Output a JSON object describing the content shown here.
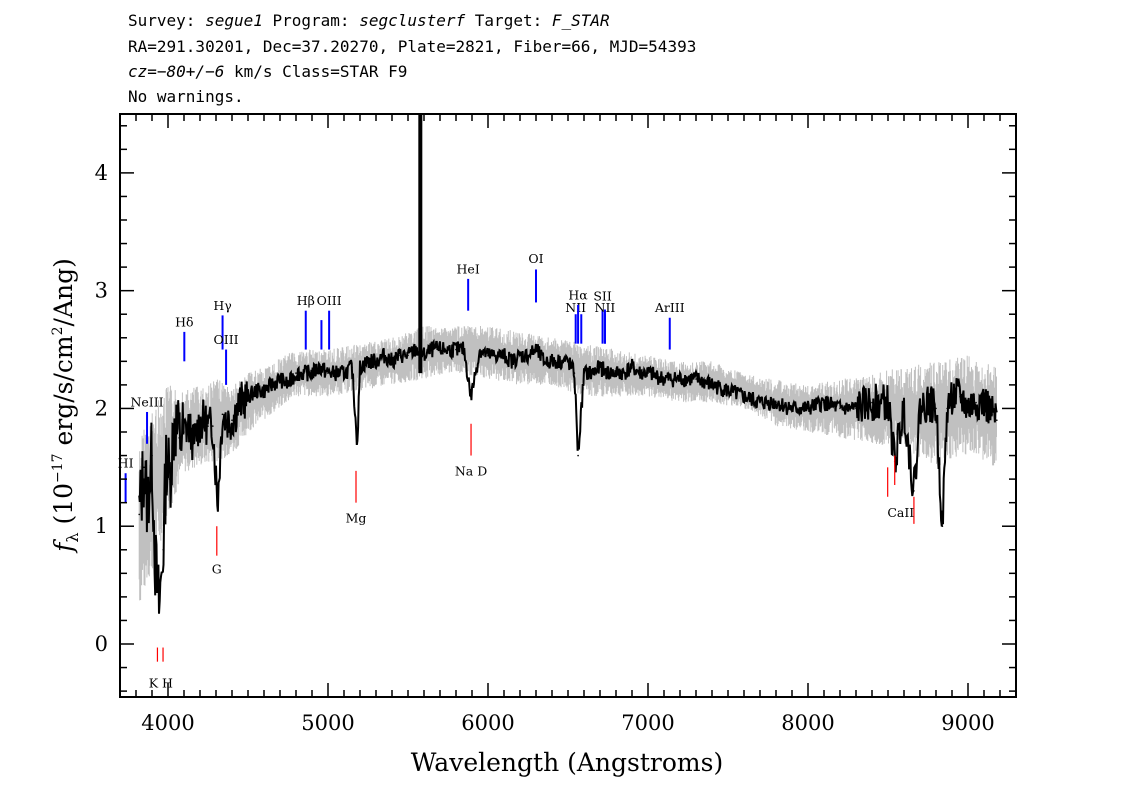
{
  "header": {
    "line1": {
      "survey_label": "Survey: ",
      "survey": "segue1",
      "program_label": " Program: ",
      "program": "segclusterf",
      "target_label": " Target: ",
      "target": "F_STAR"
    },
    "line2": "RA=291.30201, Dec=37.20270, Plate=2821, Fiber=66, MJD=54393",
    "line3": {
      "cz": "cz=−80+/−6",
      "rest": " km/s Class=STAR F9"
    },
    "line4": "No warnings."
  },
  "chart_data": {
    "type": "line",
    "xlabel": "Wavelength (Angstroms)",
    "ylabel_prefix": "f",
    "ylabel_sub": "λ",
    "ylabel_mid": " (10",
    "ylabel_exp": "−17",
    "ylabel_units": " erg/s/cm",
    "ylabel_sq": "2",
    "ylabel_end": "/Ang)",
    "xlim": [
      3700,
      9300
    ],
    "ylim": [
      -0.45,
      4.5
    ],
    "x_ticks": [
      4000,
      5000,
      6000,
      7000,
      8000,
      9000
    ],
    "x_tick_labels": [
      "4000",
      "5000",
      "6000",
      "7000",
      "8000",
      "9000"
    ],
    "y_ticks": [
      0,
      1,
      2,
      3,
      4
    ],
    "y_tick_labels": [
      "0",
      "1",
      "2",
      "3",
      "4"
    ],
    "series": [
      {
        "role": "flux",
        "color": "#000000",
        "x": [
          3820,
          3850,
          3870,
          3900,
          3920,
          3945,
          3970,
          3990,
          4010,
          4040,
          4070,
          4100,
          4130,
          4160,
          4190,
          4220,
          4250,
          4280,
          4310,
          4340,
          4370,
          4400,
          4450,
          4500,
          4550,
          4600,
          4650,
          4700,
          4750,
          4800,
          4850,
          4900,
          4950,
          5000,
          5050,
          5100,
          5150,
          5183,
          5200,
          5250,
          5300,
          5350,
          5400,
          5450,
          5500,
          5550,
          5600,
          5650,
          5700,
          5750,
          5800,
          5850,
          5893,
          5950,
          6000,
          6050,
          6100,
          6150,
          6200,
          6250,
          6300,
          6350,
          6400,
          6450,
          6500,
          6540,
          6563,
          6600,
          6650,
          6700,
          6750,
          6800,
          6850,
          6900,
          6950,
          7000,
          7100,
          7200,
          7300,
          7400,
          7500,
          7600,
          7700,
          7800,
          7900,
          8000,
          8100,
          8200,
          8300,
          8400,
          8500,
          8542,
          8600,
          8662,
          8700,
          8750,
          8800,
          8840,
          8870,
          8900,
          8950,
          9000,
          9050,
          9100,
          9150,
          9180
        ],
        "y": [
          1.1,
          1.5,
          1.2,
          1.6,
          0.7,
          0.3,
          0.8,
          1.6,
          1.4,
          1.9,
          1.75,
          1.8,
          1.85,
          1.7,
          1.85,
          1.9,
          1.85,
          1.85,
          1.2,
          1.95,
          1.9,
          1.9,
          2.05,
          2.1,
          2.15,
          2.15,
          2.2,
          2.25,
          2.2,
          2.3,
          2.3,
          2.3,
          2.35,
          2.3,
          2.3,
          2.3,
          2.35,
          1.7,
          2.35,
          2.4,
          2.4,
          2.45,
          2.4,
          2.45,
          2.45,
          2.5,
          2.45,
          2.5,
          2.5,
          2.5,
          2.5,
          2.5,
          2.1,
          2.5,
          2.45,
          2.45,
          2.45,
          2.4,
          2.45,
          2.45,
          2.5,
          2.4,
          2.4,
          2.4,
          2.4,
          2.3,
          1.6,
          2.3,
          2.3,
          2.35,
          2.3,
          2.3,
          2.3,
          2.35,
          2.3,
          2.3,
          2.25,
          2.25,
          2.25,
          2.2,
          2.15,
          2.1,
          2.05,
          2.05,
          2.0,
          2.0,
          2.05,
          2.0,
          2.0,
          2.05,
          2.05,
          1.55,
          2.0,
          1.3,
          2.0,
          2.05,
          2.0,
          1.0,
          2.0,
          2.1,
          2.1,
          2.0,
          2.05,
          2.05,
          1.95,
          1.9
        ]
      },
      {
        "role": "noise envelope (upper)",
        "color": "#c0c0c0",
        "x": [
          3820,
          3900,
          4000,
          4100,
          4200,
          4300,
          4400,
          4500,
          4600,
          4800,
          5000,
          5200,
          5400,
          5600,
          5800,
          6000,
          6200,
          6400,
          6600,
          6800,
          7000,
          7200,
          7400,
          7600,
          7800,
          8000,
          8200,
          8400,
          8600,
          8800,
          9000,
          9180
        ],
        "y": [
          1.75,
          2.0,
          2.2,
          2.15,
          2.2,
          2.25,
          2.2,
          2.3,
          2.35,
          2.5,
          2.5,
          2.55,
          2.6,
          2.7,
          2.7,
          2.7,
          2.65,
          2.6,
          2.55,
          2.5,
          2.45,
          2.4,
          2.4,
          2.3,
          2.25,
          2.2,
          2.25,
          2.3,
          2.35,
          2.4,
          2.45,
          2.35
        ]
      },
      {
        "role": "noise envelope (lower)",
        "color": "#c0c0c0",
        "x": [
          3820,
          3900,
          4000,
          4100,
          4200,
          4300,
          4400,
          4500,
          4600,
          4800,
          5000,
          5200,
          5400,
          5600,
          5800,
          6000,
          6200,
          6400,
          6600,
          6800,
          7000,
          7200,
          7400,
          7600,
          7800,
          8000,
          8200,
          8400,
          8600,
          8800,
          9000,
          9180
        ],
        "y": [
          0.3,
          0.6,
          1.1,
          1.45,
          1.5,
          1.55,
          1.6,
          1.8,
          1.9,
          2.1,
          2.1,
          2.15,
          2.2,
          2.25,
          2.3,
          2.25,
          2.2,
          2.2,
          2.1,
          2.1,
          2.1,
          2.05,
          2.05,
          2.0,
          1.85,
          1.8,
          1.75,
          1.7,
          1.65,
          1.5,
          1.6,
          1.5
        ]
      }
    ],
    "spike": {
      "x": 5577,
      "y": 4.5
    },
    "emission_lines": [
      {
        "label": "HI",
        "x": 3735,
        "y1": 1.2,
        "y2": 1.45,
        "label_y": 1.48
      },
      {
        "label": "NeIII",
        "x": 3869,
        "y1": 1.7,
        "y2": 1.97,
        "label_y": 2.0
      },
      {
        "label": "Hδ",
        "x": 4102,
        "y1": 2.4,
        "y2": 2.65,
        "label_y": 2.68
      },
      {
        "label": "Hγ",
        "x": 4341,
        "y1": 2.5,
        "y2": 2.79,
        "label_y": 2.82
      },
      {
        "label": "OIII",
        "x": 4363,
        "y1": 2.2,
        "y2": 2.5,
        "label_y": 2.53
      },
      {
        "label": "Hβ",
        "x": 4861,
        "y1": 2.5,
        "y2": 2.83,
        "label_y": 2.86
      },
      {
        "label": "OIII",
        "x": 4959,
        "y1": 2.5,
        "y2": 2.75
      },
      {
        "label": "OIII",
        "x": 5007,
        "y1": 2.5,
        "y2": 2.83,
        "label_y": 2.86
      },
      {
        "label": "HeI",
        "x": 5876,
        "y1": 2.83,
        "y2": 3.1,
        "label_y": 3.13
      },
      {
        "label": "OI",
        "x": 6300,
        "y1": 2.9,
        "y2": 3.18,
        "label_y": 3.22
      },
      {
        "label": "NII",
        "x": 6548,
        "y1": 2.55,
        "y2": 2.8,
        "label_y": 2.8
      },
      {
        "label": "Hα",
        "x": 6563,
        "y1": 2.55,
        "y2": 2.88,
        "label_y": 2.91
      },
      {
        "label": "NII",
        "x": 6583,
        "y1": 2.55,
        "y2": 2.8
      },
      {
        "label": "SII",
        "x": 6716,
        "y1": 2.55,
        "y2": 2.84,
        "label_y": 2.9
      },
      {
        "label": "SII",
        "x": 6731,
        "y1": 2.55,
        "y2": 2.84
      },
      {
        "label": "NII",
        "x": 6731,
        "y1": 2.55,
        "y2": 2.8,
        "label_y": 2.8
      },
      {
        "label": "ArIII",
        "x": 7136,
        "y1": 2.5,
        "y2": 2.77,
        "label_y": 2.8
      }
    ],
    "absorption_lines": [
      {
        "label": "K",
        "x": 3934,
        "y1": -0.15,
        "y2": -0.03
      },
      {
        "label": "H",
        "x": 3969,
        "y1": -0.15,
        "y2": -0.03
      },
      {
        "label": "G",
        "x": 4305,
        "y1": 0.75,
        "y2": 1.0
      },
      {
        "label": "Mg",
        "x": 5175,
        "y1": 1.2,
        "y2": 1.47
      },
      {
        "label": "Na D",
        "x": 5894,
        "y1": 1.6,
        "y2": 1.87
      },
      {
        "label": "CaII",
        "x": 8498,
        "y1": 1.25,
        "y2": 1.5
      },
      {
        "label": "CaII",
        "x": 8542,
        "y1": 1.35,
        "y2": 1.6
      },
      {
        "label": "CaII",
        "x": 8662,
        "y1": 1.02,
        "y2": 1.25
      }
    ],
    "absorption_label_positions": [
      {
        "label": "K H",
        "x": 3955,
        "y": -0.37
      },
      {
        "label": "G",
        "x": 4305,
        "y": 0.6
      },
      {
        "label": "Mg",
        "x": 5175,
        "y": 1.03
      },
      {
        "label": "Na D",
        "x": 5894,
        "y": 1.43
      },
      {
        "label": "CaII",
        "x": 8580,
        "y": 1.08
      }
    ],
    "colors": {
      "flux": "#000000",
      "noise": "#c0c0c0",
      "emission": "#0000ff",
      "absorption": "#ff0000"
    }
  }
}
